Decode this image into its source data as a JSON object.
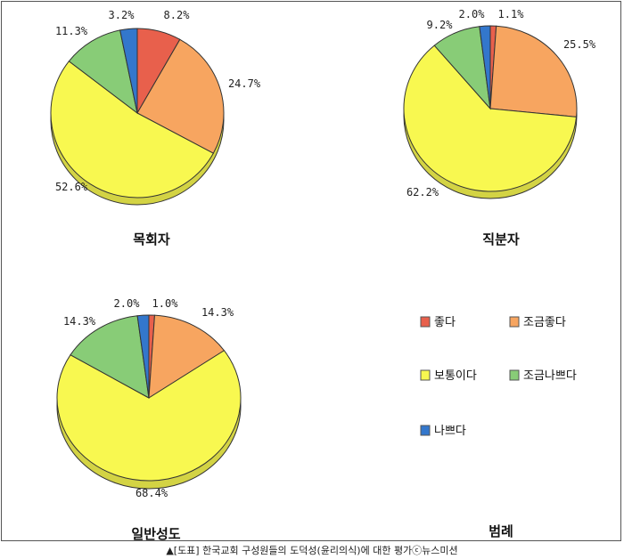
{
  "caption": "▲[도표] 한국교회 구성원들의 도덕성(윤리의식)에 대한 평가ⓒ뉴스미션",
  "legend_title": "범례",
  "categories": [
    "좋다",
    "조금좋다",
    "보통이다",
    "조금나쁘다",
    "나쁘다"
  ],
  "colors": [
    "#E8604C",
    "#F7A560",
    "#F8F850",
    "#88CC77",
    "#3377CC"
  ],
  "chart_data": [
    {
      "type": "pie",
      "title": "목회자",
      "categories": [
        "좋다",
        "조금좋다",
        "보통이다",
        "조금나쁘다",
        "나쁘다"
      ],
      "values": [
        8.2,
        24.7,
        52.6,
        11.3,
        3.2
      ],
      "labels": [
        "8.2%",
        "24.7%",
        "52.6%",
        "11.3%",
        "3.2%"
      ]
    },
    {
      "type": "pie",
      "title": "직분자",
      "categories": [
        "좋다",
        "조금좋다",
        "보통이다",
        "조금나쁘다",
        "나쁘다"
      ],
      "values": [
        1.1,
        25.5,
        62.2,
        9.2,
        2.0
      ],
      "labels": [
        "1.1%",
        "25.5%",
        "62.2%",
        "9.2%",
        "2.0%"
      ]
    },
    {
      "type": "pie",
      "title": "일반성도",
      "categories": [
        "좋다",
        "조금좋다",
        "보통이다",
        "조금나쁘다",
        "나쁘다"
      ],
      "values": [
        1.0,
        14.3,
        68.4,
        14.3,
        2.0
      ],
      "labels": [
        "1.0%",
        "14.3%",
        "68.4%",
        "14.3%",
        "2.0%"
      ]
    }
  ]
}
